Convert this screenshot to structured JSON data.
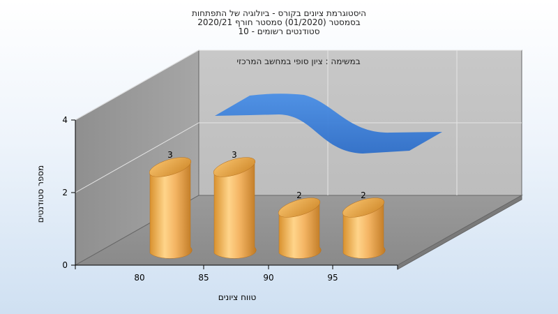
{
  "header": {
    "title_lines": [
      "היסטוגרמת ציונים בקורס - ביולוגיה של התפתחות",
      "בסמסטר  (01/2020)  סמסטר חורף  2020/21",
      "סטודנטים רשומים - 10"
    ]
  },
  "chart_data": {
    "type": "bar",
    "categories": [
      "80",
      "85",
      "90",
      "95"
    ],
    "values": [
      3,
      3,
      2,
      2
    ],
    "data_labels": [
      "3",
      "3",
      "2",
      "2"
    ],
    "xlabel": "טווח ציונים",
    "ylabel": "מספר סטודנטים",
    "ylim": [
      0,
      4
    ],
    "yticks": [
      "0",
      "2",
      "4"
    ],
    "xticks": [
      "80",
      "85",
      "90",
      "95"
    ],
    "annotation": "במשימה : ציון סופי במחשב המרכזי",
    "grid": true,
    "bar_color": "#f2b05a",
    "ribbon_color": "#3f7fd6"
  }
}
